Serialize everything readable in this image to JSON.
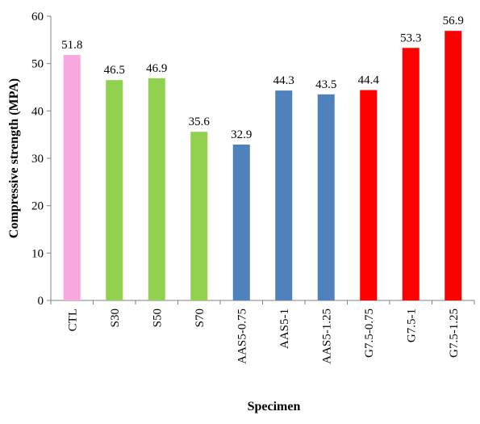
{
  "chart_data": {
    "type": "bar",
    "title": "",
    "xlabel": "Specimen",
    "ylabel": "Compressive strength (MPA)",
    "ylim": [
      0,
      60
    ],
    "yticks": [
      0,
      10,
      20,
      30,
      40,
      50,
      60
    ],
    "grid": false,
    "legend": "none",
    "categories": [
      "CTL",
      "S30",
      "S50",
      "S70",
      "AAS5-0.75",
      "AAS5-1",
      "AAS5-1.25",
      "G7.5-0.75",
      "G7.5-1",
      "G7.5-1.25"
    ],
    "values": [
      51.8,
      46.5,
      46.9,
      35.6,
      32.9,
      44.3,
      43.5,
      44.4,
      53.3,
      56.9
    ],
    "data_labels": [
      "51.8",
      "46.5",
      "46.9",
      "35.6",
      "32.9",
      "44.3",
      "43.5",
      "44.4",
      "53.3",
      "56.9"
    ],
    "bar_colors": [
      "#F7A8DE",
      "#92D050",
      "#92D050",
      "#92D050",
      "#4F81BD",
      "#4F81BD",
      "#4F81BD",
      "#FF0000",
      "#FF0000",
      "#FF0000"
    ],
    "axis_color": "#808080"
  }
}
